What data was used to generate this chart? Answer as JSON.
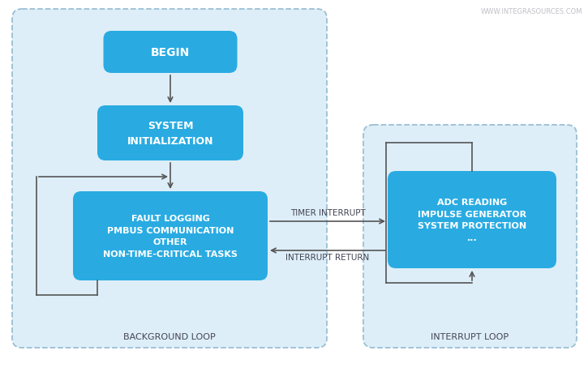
{
  "bg_color": "#ffffff",
  "box_bg": "#29abe2",
  "box_text_color": "#ffffff",
  "loop_bg": "#ddeef8",
  "loop_border": "#9bbfd4",
  "interrupt_loop_bg": "#ddeef8",
  "interrupt_loop_border": "#9bbfd4",
  "arrow_color": "#555555",
  "label_color": "#444455",
  "watermark_color": "#c0c0c8",
  "watermark": "WWW.INTEGRASOURCES.COM",
  "begin_text": "BEGIN",
  "init_text": "SYSTEM\nINITIALIZATION",
  "bg_loop_text": "FAULT LOGGING\nPMBUS COMMUNICATION\nOTHER\nNON-TIME-CRITICAL TASKS",
  "int_loop_text": "ADC READING\nIMPULSE GENERATOR\nSYSTEM PROTECTION\n...",
  "timer_interrupt_label": "TIMER INTERRUPT",
  "interrupt_return_label": "INTERRUPT RETURN",
  "background_loop_label": "BACKGROUND LOOP",
  "interrupt_loop_label": "INTERRUPT LOOP",
  "fig_width": 7.25,
  "fig_height": 4.6,
  "dpi": 100
}
